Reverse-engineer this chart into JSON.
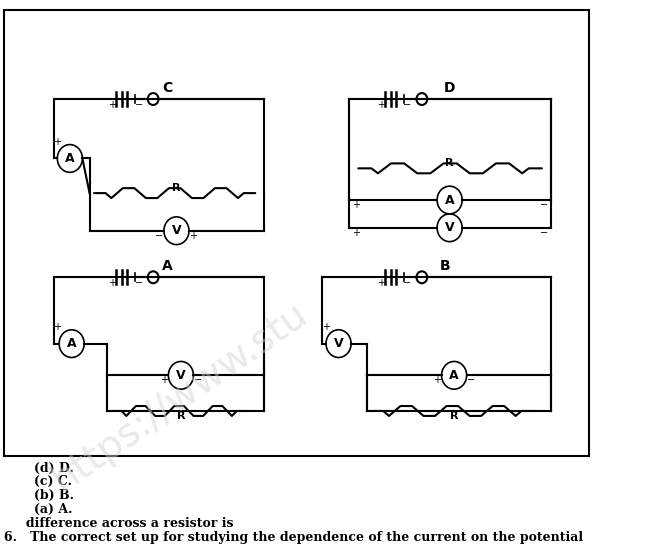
{
  "title_text": "6.   The correct set up for studying the dependence of the current on the potential\n     difference across a resistor is",
  "options": [
    "(a) A.",
    "(b) B.",
    "(c) C.",
    "(d) D."
  ],
  "background_color": "#ffffff",
  "box_color": "#000000",
  "circuit_labels": [
    "A",
    "B",
    "C",
    "D"
  ]
}
